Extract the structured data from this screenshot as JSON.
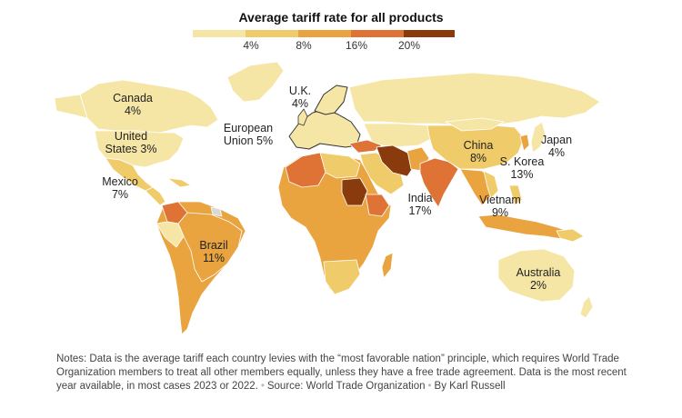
{
  "title": "Average tariff rate for all products",
  "legend": {
    "ticks": [
      "4%",
      "8%",
      "16%",
      "20%"
    ],
    "colors": [
      "#f6e6a6",
      "#f0cb6a",
      "#e9a43f",
      "#df7336",
      "#8a3b0e"
    ]
  },
  "labels": {
    "canada": {
      "name": "Canada",
      "value": "4%"
    },
    "us": {
      "name": "United States",
      "line1": "United",
      "line2": "States 3%"
    },
    "mexico": {
      "name": "Mexico",
      "value": "7%"
    },
    "uk": {
      "name": "U.K.",
      "value": "4%"
    },
    "eu": {
      "line1": "European",
      "line2": "Union 5%"
    },
    "china": {
      "name": "China",
      "value": "8%"
    },
    "japan": {
      "name": "Japan",
      "value": "4%"
    },
    "skorea": {
      "name": "S. Korea",
      "value": "13%"
    },
    "india": {
      "name": "India",
      "value": "17%"
    },
    "vietnam": {
      "name": "Vietnam",
      "value": "9%"
    },
    "brazil": {
      "name": "Brazil",
      "value": "11%"
    },
    "australia": {
      "name": "Australia",
      "value": "2%"
    }
  },
  "notes": {
    "text": "Notes: Data is the average tariff each country levies with the “most favorable nation” principle, which requires World Trade Organization members to treat all other members equally, unless they have a free trade agreement. Data is the most recent year available, in most cases 2023 or 2022.",
    "source": "Source: World Trade Organization",
    "byline": "By Karl Russell"
  }
}
